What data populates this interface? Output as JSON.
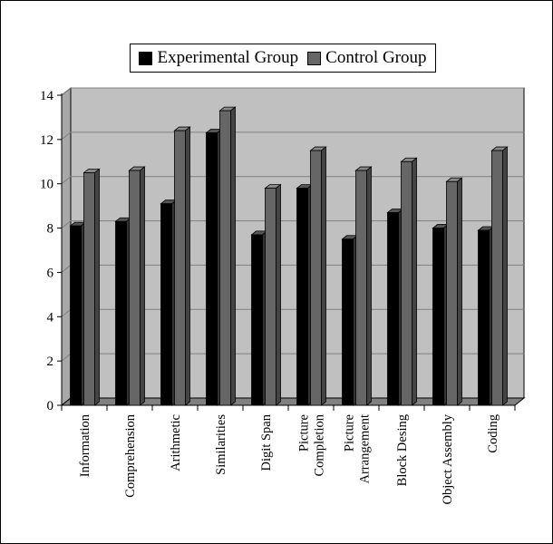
{
  "chart_data": {
    "type": "bar",
    "title": "",
    "xlabel": "",
    "ylabel": "",
    "categories": [
      "Information",
      "Comprehension",
      "Arithmetic",
      "Similarities",
      "Digit Span",
      "Picture\nCompletion",
      "Picture\nArrangement",
      "Block Desing",
      "Object Assembly",
      "Coding"
    ],
    "series": [
      {
        "name": "Experimental Group",
        "color": "#000000",
        "values": [
          8.1,
          8.3,
          9.1,
          12.3,
          7.7,
          9.8,
          7.5,
          8.7,
          8.0,
          7.9
        ]
      },
      {
        "name": "Control Group",
        "color": "#666666",
        "values": [
          10.5,
          10.6,
          12.4,
          13.3,
          9.8,
          11.5,
          10.6,
          11.0,
          10.1,
          11.5
        ]
      }
    ],
    "ylim": [
      0,
      14
    ],
    "yticks": [
      0,
      2,
      4,
      6,
      8,
      10,
      12,
      14
    ],
    "grid": true,
    "legend_position": "top",
    "style": "3d",
    "colors": {
      "plot_background": "#c0c0c0",
      "floor": "#808080",
      "side_wall": "#a8a8a8",
      "gridline": "#808080"
    }
  }
}
